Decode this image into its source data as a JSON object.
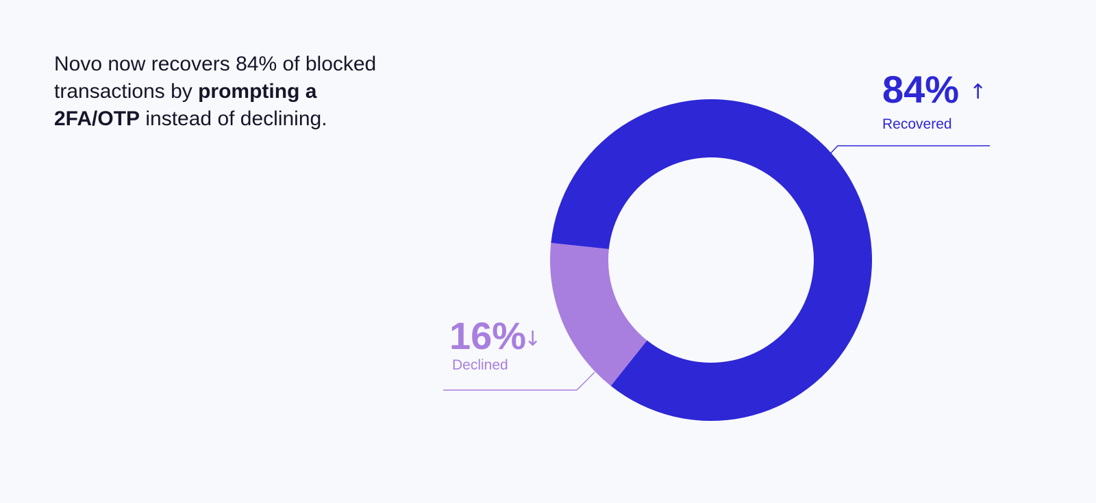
{
  "headline": {
    "part1": "Novo now recovers 84% of blocked transactions by ",
    "bold": "prompting a 2FA/OTP",
    "part2": " instead of declining."
  },
  "colors": {
    "recovered": "#2d27d6",
    "declined": "#a87fdf",
    "background": "#f8f9fc",
    "text": "#16162a"
  },
  "chart_data": {
    "type": "pie",
    "style": "donut",
    "title": "",
    "slices": [
      {
        "name": "Recovered",
        "value": 84,
        "label": "84%",
        "arrow": "↑",
        "color": "#2d27d6"
      },
      {
        "name": "Declined",
        "value": 16,
        "label": "16%",
        "arrow": "↓",
        "color": "#a87fdf"
      }
    ]
  }
}
